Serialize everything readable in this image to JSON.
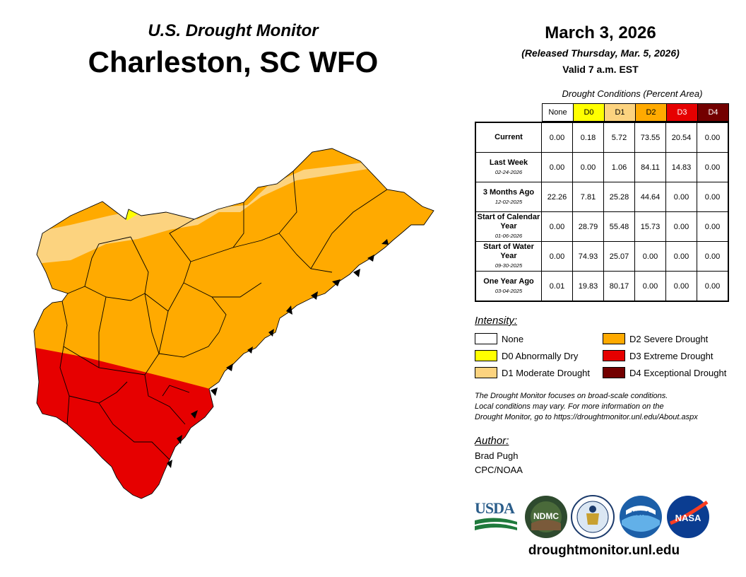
{
  "header": {
    "product": "U.S. Drought Monitor",
    "region": "Charleston, SC WFO",
    "date": "March 3, 2026",
    "released": "(Released Thursday, Mar. 5, 2026)",
    "valid": "Valid 7 a.m. EST"
  },
  "table": {
    "caption": "Drought Conditions (Percent Area)",
    "columns": [
      "None",
      "D0",
      "D1",
      "D2",
      "D3",
      "D4"
    ],
    "rows": [
      {
        "label": "Current",
        "date": "",
        "values": [
          "0.00",
          "0.18",
          "5.72",
          "73.55",
          "20.54",
          "0.00"
        ]
      },
      {
        "label": "Last Week",
        "date": "02-24-2026",
        "values": [
          "0.00",
          "0.00",
          "1.06",
          "84.11",
          "14.83",
          "0.00"
        ]
      },
      {
        "label": "3 Months Ago",
        "date": "12-02-2025",
        "values": [
          "22.26",
          "7.81",
          "25.28",
          "44.64",
          "0.00",
          "0.00"
        ]
      },
      {
        "label": "Start of Calendar Year",
        "date": "01-06-2026",
        "values": [
          "0.00",
          "28.79",
          "55.48",
          "15.73",
          "0.00",
          "0.00"
        ]
      },
      {
        "label": "Start of Water Year",
        "date": "09-30-2025",
        "values": [
          "0.00",
          "74.93",
          "25.07",
          "0.00",
          "0.00",
          "0.00"
        ]
      },
      {
        "label": "One Year Ago",
        "date": "03-04-2025",
        "values": [
          "0.01",
          "19.83",
          "80.17",
          "0.00",
          "0.00",
          "0.00"
        ]
      }
    ]
  },
  "legend": {
    "title": "Intensity:",
    "items": [
      {
        "label": "None",
        "color": "#ffffff"
      },
      {
        "label": "D0 Abnormally Dry",
        "color": "#ffff00"
      },
      {
        "label": "D1 Moderate Drought",
        "color": "#fcd37f"
      },
      {
        "label": "D2 Severe Drought",
        "color": "#ffaa00"
      },
      {
        "label": "D3 Extreme Drought",
        "color": "#e60000"
      },
      {
        "label": "D4 Exceptional Drought",
        "color": "#730000"
      }
    ]
  },
  "note": {
    "line1": "The Drought Monitor focuses on broad-scale conditions.",
    "line2": "Local conditions may vary. For more information on the",
    "line3": "Drought Monitor, go to https://droughtmonitor.unl.edu/About.aspx"
  },
  "author": {
    "title": "Author:",
    "name": "Brad Pugh",
    "org": "CPC/NOAA"
  },
  "logos": {
    "usda": "USDA",
    "ndmc": "NDMC",
    "noaa": "NOAA",
    "nasa": "NASA"
  },
  "site": "droughtmonitor.unl.edu",
  "map_colors": {
    "D0": "#ffff00",
    "D1": "#fcd37f",
    "D2": "#ffaa00",
    "D3": "#e60000",
    "boundary": "#000000"
  }
}
